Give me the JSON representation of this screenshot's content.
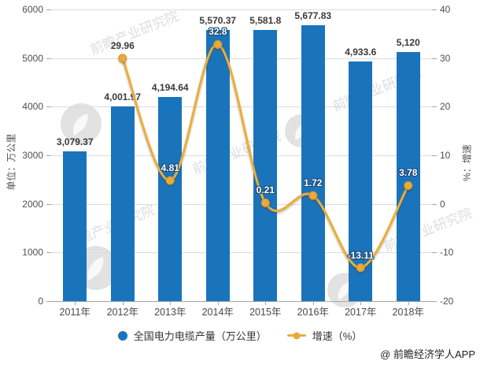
{
  "watermark": {
    "text": "前瞻产业研究院"
  },
  "attribution": "@ 前瞻经济学人APP",
  "colors": {
    "bar": "#1a74bb",
    "line": "#e8ae3e",
    "marker": "#e9a93c",
    "marker_stroke": "#d4952e",
    "grid": "#dcdcdc",
    "axis": "#a6a6a6"
  },
  "chart_data": {
    "type": "bar+line",
    "categories": [
      "2011年",
      "2012年",
      "2013年",
      "2014年",
      "2015年",
      "2016年",
      "2017年",
      "2018年"
    ],
    "series": [
      {
        "name": "全国电力电缆产量（万公里）",
        "type": "bar",
        "axis": "left",
        "color": "#1a74bb",
        "values": [
          3079.37,
          4001.97,
          4194.64,
          5570.37,
          5581.8,
          5677.83,
          4933.6,
          5120
        ],
        "labels": [
          "3,079.37",
          "4,001.97",
          "4,194.64",
          "5,570.37",
          "5,581.8",
          "5,677.83",
          "4,933.6",
          "5,120"
        ]
      },
      {
        "name": "增速（%）",
        "type": "line",
        "axis": "right",
        "color": "#e8ae3e",
        "values": [
          null,
          29.96,
          4.81,
          32.8,
          0.21,
          1.72,
          -13.11,
          3.78
        ],
        "labels": [
          null,
          "29.96",
          "4.81",
          "32.8",
          "0.21",
          "1.72",
          "-13.11",
          "3.78"
        ]
      }
    ],
    "left_axis": {
      "title": "单位：万公里",
      "min": 0,
      "max": 6000,
      "step": 1000
    },
    "right_axis": {
      "title": "%：增速",
      "min": -20,
      "max": 40,
      "step": 10
    },
    "legend_position": "bottom",
    "grid": true
  }
}
